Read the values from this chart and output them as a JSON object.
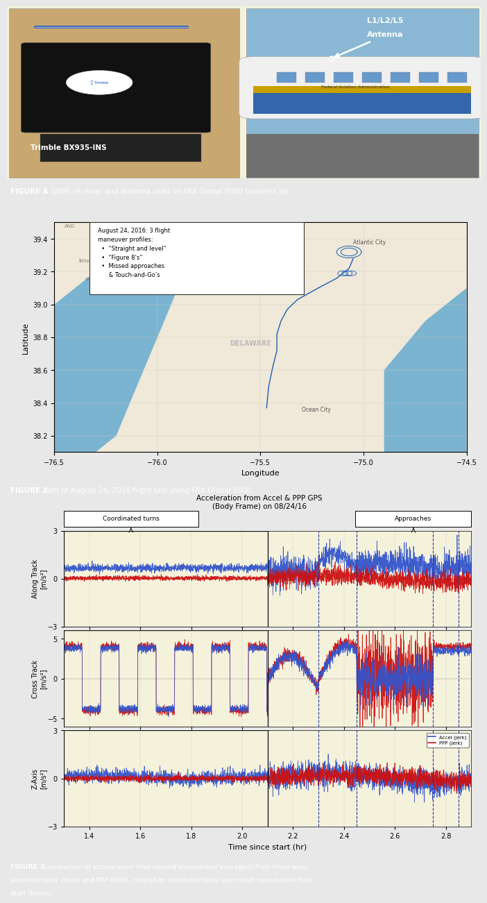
{
  "fig_width": 6.83,
  "fig_height": 12.75,
  "bg_color": "#f5f2dc",
  "caption_bg": "#2b6cb0",
  "caption_fg": "#ffffff",
  "fig1_caption": "FIGURE 1  A GNSS receiver and antenna used on FAA Global 5000 business jet.",
  "fig2_caption": "FIGURE 2  Path of August 24, 2016 flight test using FAA Global 5000.",
  "fig3_caption": "FIGURE 3  Comparison of acceleration (five second exponential averaged) from three axes:\naccelerometer (blue) and PPP GNSS, rotated to estimated body axes (red) versus time from\nstart (hours).",
  "map_title": "August 24, 2016: 3 flight\nmaneuver profiles:\n  •  “Straight and level”\n  •  “Figure 8’s”\n  •  Missed approaches\n      & Touch-and-Go’s",
  "map_xlim": [
    -76.5,
    -74.5
  ],
  "map_ylim": [
    38.1,
    39.5
  ],
  "map_xticks": [
    -76.5,
    -76,
    -75.5,
    -75,
    -74.5
  ],
  "map_yticks": [
    38.2,
    38.4,
    38.6,
    38.8,
    39,
    39.2,
    39.4
  ],
  "map_xlabel": "Longitude",
  "map_ylabel": "Latitude",
  "plot_title": "Acceleration from Accel & PPP GPS\n(Body Frame) on 08/24/16",
  "plot_xlim": [
    1.3,
    2.9
  ],
  "plot_xticks": [
    1.4,
    1.6,
    1.8,
    2.0,
    2.2,
    2.4,
    2.6,
    2.8
  ],
  "plot_xlabel": "Time since start (hr)",
  "subplot1_ylim": [
    -3,
    3
  ],
  "subplot1_yticks": [
    -3,
    0,
    3
  ],
  "subplot1_ylabel": "Along Track\n[m/s²]",
  "subplot2_ylim": [
    -6,
    6
  ],
  "subplot2_yticks": [
    -5,
    0,
    5
  ],
  "subplot2_ylabel": "Cross Track\n[m/s²]",
  "subplot3_ylim": [
    -3,
    3
  ],
  "subplot3_yticks": [
    -3,
    0,
    3
  ],
  "subplot3_ylabel": "Z-Axis\n[m/s²]",
  "blue_color": "#3355cc",
  "red_color": "#cc1111",
  "dashed_lines": [
    2.1,
    2.3,
    2.45,
    2.75,
    2.85
  ],
  "box1_label": "Coordinated turns",
  "box2_label": "Approaches",
  "legend_accel": "Accel (jerk)",
  "legend_ppp": "PPP (jerk)"
}
